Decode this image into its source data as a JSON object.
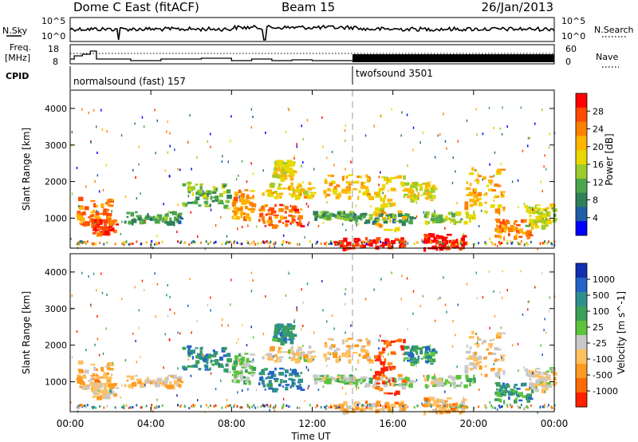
{
  "header": {
    "title": "Dome C East (fitACF)",
    "beam": "Beam 15",
    "date": "26/Jan/2013"
  },
  "noise_panel": {
    "left_label": "N.Sky",
    "right_label": "N.Search",
    "left_ticks": [
      "10^5",
      "10^0"
    ],
    "right_ticks": [
      "10^5",
      "10^0"
    ]
  },
  "freq_panel": {
    "left_label_line1": "Freq.",
    "left_label_line2": "[MHz]",
    "right_label": "Nave",
    "left_ticks": [
      "18",
      "8"
    ],
    "right_ticks": [
      "60",
      "0"
    ]
  },
  "cpid": {
    "label": "CPID",
    "modes": [
      {
        "name": "normalsound (fast) 157",
        "start": "00:00",
        "end": "14:00"
      },
      {
        "name": "twofsound 3501",
        "start": "14:00",
        "end": "24:00"
      }
    ]
  },
  "x_axis": {
    "label": "Time UT",
    "ticks": [
      "00:00",
      "04:00",
      "08:00",
      "12:00",
      "16:00",
      "20:00",
      "00:00"
    ]
  },
  "chart_data": [
    {
      "type": "heatmap",
      "name": "power",
      "ylabel": "Slant Range [km]",
      "ylim": [
        180,
        4500
      ],
      "yticks": [
        "1000",
        "2000",
        "3000",
        "4000"
      ],
      "colorbar": {
        "label": "Power [dB]",
        "ticks": [
          "28",
          "24",
          "20",
          "16",
          "12",
          "8",
          "4"
        ],
        "colors": [
          "#ff0000",
          "#ff4a00",
          "#ff7f00",
          "#ffb400",
          "#e8d800",
          "#9ccc2b",
          "#4ca64c",
          "#2f7f5a",
          "#1e5ea8",
          "#0000ff"
        ]
      },
      "regions": [
        {
          "t": [
            0.3,
            2.0
          ],
          "r": [
            800,
            1600
          ],
          "level": 0.75
        },
        {
          "t": [
            1.0,
            2.3
          ],
          "r": [
            600,
            1000
          ],
          "level": 0.9
        },
        {
          "t": [
            2.6,
            5.5
          ],
          "r": [
            900,
            1200
          ],
          "level": 0.3
        },
        {
          "t": [
            5.5,
            7.8
          ],
          "r": [
            1300,
            2000
          ],
          "level": 0.4
        },
        {
          "t": [
            8.0,
            9.0
          ],
          "r": [
            1000,
            1800
          ],
          "level": 0.7
        },
        {
          "t": [
            9.3,
            11.5
          ],
          "r": [
            800,
            1400
          ],
          "level": 0.8
        },
        {
          "t": [
            9.5,
            12.0
          ],
          "r": [
            1600,
            2000
          ],
          "level": 0.6
        },
        {
          "t": [
            10.0,
            11.0
          ],
          "r": [
            2100,
            2600
          ],
          "level": 0.55
        },
        {
          "t": [
            12.0,
            14.0
          ],
          "r": [
            1000,
            1200
          ],
          "level": 0.35
        },
        {
          "t": [
            12.5,
            14.8
          ],
          "r": [
            1600,
            2200
          ],
          "level": 0.65
        },
        {
          "t": [
            13.0,
            16.5
          ],
          "r": [
            200,
            500
          ],
          "level": 0.95
        },
        {
          "t": [
            14.0,
            17.0
          ],
          "r": [
            900,
            1150
          ],
          "level": 0.3
        },
        {
          "t": [
            15.0,
            16.5
          ],
          "r": [
            700,
            2200
          ],
          "level": 0.6
        },
        {
          "t": [
            16.5,
            18.0
          ],
          "r": [
            1500,
            2000
          ],
          "level": 0.55
        },
        {
          "t": [
            17.5,
            19.5
          ],
          "r": [
            200,
            600
          ],
          "level": 0.95
        },
        {
          "t": [
            17.5,
            20.0
          ],
          "r": [
            900,
            1200
          ],
          "level": 0.45
        },
        {
          "t": [
            19.5,
            21.5
          ],
          "r": [
            1200,
            2400
          ],
          "level": 0.65
        },
        {
          "t": [
            21.0,
            23.0
          ],
          "r": [
            500,
            1000
          ],
          "level": 0.75
        },
        {
          "t": [
            22.5,
            24.0
          ],
          "r": [
            800,
            1400
          ],
          "level": 0.5
        }
      ]
    },
    {
      "type": "heatmap",
      "name": "velocity",
      "ylabel": "Slant Range [km]",
      "ylim": [
        180,
        4500
      ],
      "yticks": [
        "1000",
        "2000",
        "3000",
        "4000"
      ],
      "colorbar": {
        "label": "Velocity [m s^-1]",
        "ticks": [
          "1000",
          "500",
          "100",
          "25",
          "-25",
          "-100",
          "-500",
          "-1000"
        ],
        "colors": [
          "#1030b0",
          "#2464c8",
          "#2f8f8f",
          "#3aa05a",
          "#5cc43c",
          "#c8c8c8",
          "#ffc060",
          "#ff9a20",
          "#ff6a00",
          "#ff2000"
        ]
      },
      "regions": [
        {
          "t": [
            0.3,
            2.0
          ],
          "r": [
            800,
            1600
          ],
          "level": 0.3
        },
        {
          "t": [
            1.0,
            2.3
          ],
          "r": [
            600,
            1000
          ],
          "level": 0.4
        },
        {
          "t": [
            2.6,
            5.5
          ],
          "r": [
            900,
            1200
          ],
          "level": 0.35
        },
        {
          "t": [
            5.5,
            7.8
          ],
          "r": [
            1300,
            2000
          ],
          "level": 0.75
        },
        {
          "t": [
            8.0,
            9.0
          ],
          "r": [
            1000,
            1800
          ],
          "level": 0.55
        },
        {
          "t": [
            9.3,
            11.5
          ],
          "r": [
            800,
            1400
          ],
          "level": 0.78
        },
        {
          "t": [
            9.5,
            12.0
          ],
          "r": [
            1600,
            2000
          ],
          "level": 0.4
        },
        {
          "t": [
            10.0,
            11.0
          ],
          "r": [
            2100,
            2600
          ],
          "level": 0.7
        },
        {
          "t": [
            12.0,
            14.0
          ],
          "r": [
            1000,
            1200
          ],
          "level": 0.5
        },
        {
          "t": [
            12.5,
            14.8
          ],
          "r": [
            1600,
            2200
          ],
          "level": 0.35
        },
        {
          "t": [
            13.0,
            16.5
          ],
          "r": [
            200,
            500
          ],
          "level": 0.32
        },
        {
          "t": [
            14.0,
            17.0
          ],
          "r": [
            900,
            1150
          ],
          "level": 0.5
        },
        {
          "t": [
            15.0,
            16.5
          ],
          "r": [
            700,
            2200
          ],
          "level": 0.12
        },
        {
          "t": [
            16.5,
            18.0
          ],
          "r": [
            1500,
            2000
          ],
          "level": 0.7
        },
        {
          "t": [
            17.5,
            19.5
          ],
          "r": [
            200,
            600
          ],
          "level": 0.3
        },
        {
          "t": [
            17.5,
            20.0
          ],
          "r": [
            900,
            1200
          ],
          "level": 0.5
        },
        {
          "t": [
            19.5,
            21.5
          ],
          "r": [
            1200,
            2400
          ],
          "level": 0.38
        },
        {
          "t": [
            21.0,
            23.0
          ],
          "r": [
            500,
            1000
          ],
          "level": 0.7
        },
        {
          "t": [
            22.5,
            24.0
          ],
          "r": [
            800,
            1400
          ],
          "level": 0.4
        }
      ]
    }
  ]
}
